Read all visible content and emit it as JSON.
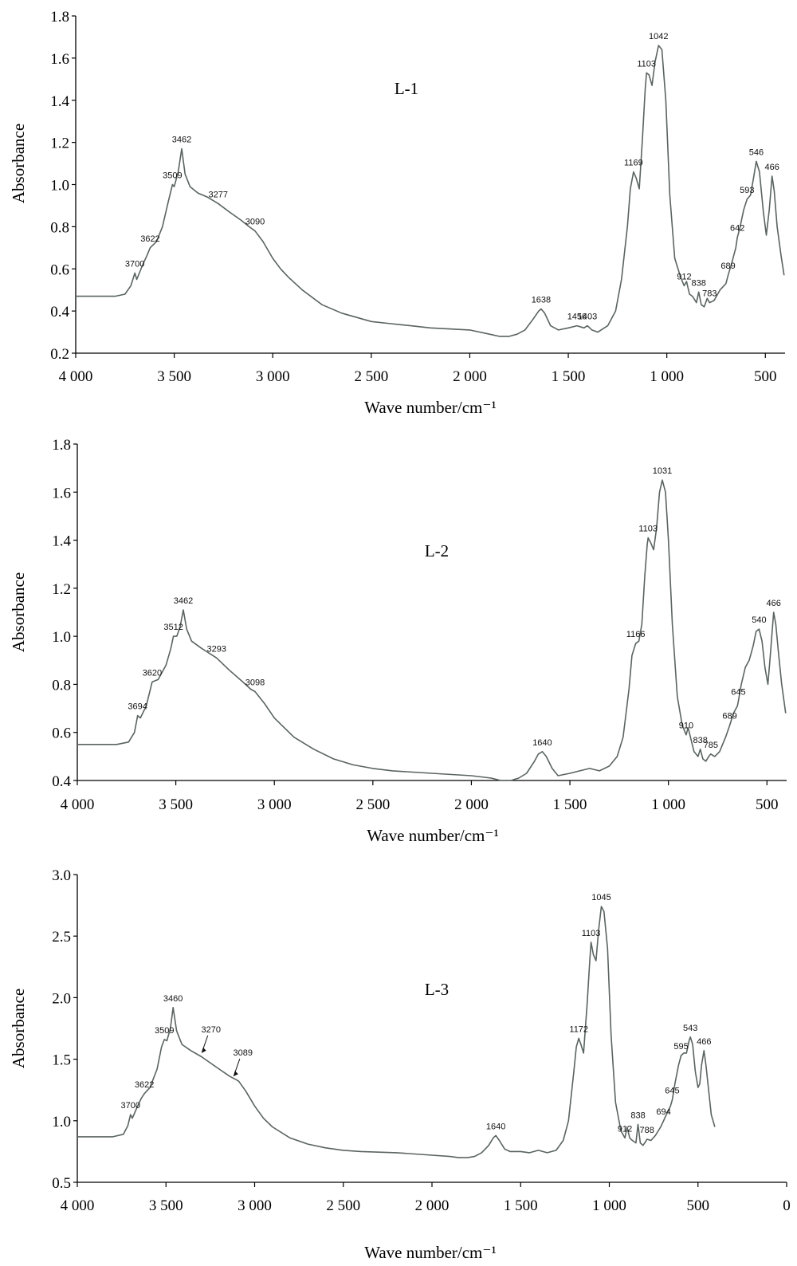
{
  "chart_data": [
    {
      "type": "line",
      "panel_label": "L-1",
      "xlabel": "Wave number/cm⁻¹",
      "ylabel": "Absorbance",
      "xlim": [
        4000,
        400
      ],
      "ylim": [
        0.2,
        1.8
      ],
      "x_ticks": [
        4000,
        3500,
        3000,
        2500,
        2000,
        1500,
        1000,
        500
      ],
      "x_tick_labels": [
        "4 000",
        "3 500",
        "3 000",
        "2 500",
        "2 000",
        "1 500",
        "1 000",
        "500"
      ],
      "y_ticks": [
        0.2,
        0.4,
        0.6,
        0.8,
        1.0,
        1.2,
        1.4,
        1.6,
        1.8
      ],
      "y_tick_labels": [
        "0.2",
        "0.4",
        "0.6",
        "0.8",
        "1.0",
        "1.2",
        "1.4",
        "1.6",
        "1.8"
      ],
      "series": [
        {
          "x": [
            4000,
            3800,
            3750,
            3720,
            3700,
            3690,
            3660,
            3640,
            3622,
            3590,
            3560,
            3530,
            3509,
            3500,
            3480,
            3462,
            3445,
            3420,
            3380,
            3330,
            3277,
            3220,
            3160,
            3120,
            3090,
            3050,
            3000,
            2960,
            2920,
            2850,
            2750,
            2650,
            2500,
            2400,
            2350,
            2300,
            2200,
            2000,
            1900,
            1850,
            1800,
            1760,
            1720,
            1680,
            1650,
            1638,
            1620,
            1590,
            1550,
            1500,
            1456,
            1420,
            1403,
            1380,
            1350,
            1300,
            1260,
            1230,
            1200,
            1185,
            1169,
            1155,
            1140,
            1125,
            1110,
            1103,
            1090,
            1075,
            1060,
            1042,
            1025,
            1005,
            985,
            960,
            930,
            912,
            900,
            885,
            870,
            850,
            838,
            825,
            810,
            795,
            783,
            760,
            730,
            700,
            689,
            670,
            650,
            642,
            630,
            610,
            593,
            575,
            560,
            546,
            530,
            510,
            495,
            480,
            466,
            455,
            440,
            420,
            405
          ],
          "y": [
            0.47,
            0.47,
            0.48,
            0.52,
            0.58,
            0.55,
            0.62,
            0.66,
            0.7,
            0.73,
            0.8,
            0.92,
            1.0,
            0.99,
            1.06,
            1.17,
            1.05,
            0.99,
            0.96,
            0.94,
            0.91,
            0.87,
            0.83,
            0.8,
            0.78,
            0.73,
            0.65,
            0.6,
            0.56,
            0.5,
            0.43,
            0.39,
            0.35,
            0.34,
            0.335,
            0.33,
            0.32,
            0.31,
            0.29,
            0.28,
            0.28,
            0.29,
            0.31,
            0.36,
            0.4,
            0.41,
            0.39,
            0.33,
            0.31,
            0.32,
            0.33,
            0.32,
            0.33,
            0.31,
            0.3,
            0.33,
            0.4,
            0.55,
            0.8,
            0.98,
            1.06,
            1.03,
            0.98,
            1.2,
            1.45,
            1.53,
            1.52,
            1.47,
            1.58,
            1.66,
            1.64,
            1.4,
            0.95,
            0.65,
            0.56,
            0.52,
            0.54,
            0.48,
            0.47,
            0.44,
            0.49,
            0.43,
            0.42,
            0.46,
            0.44,
            0.45,
            0.5,
            0.53,
            0.57,
            0.63,
            0.7,
            0.75,
            0.79,
            0.88,
            0.93,
            0.95,
            1.03,
            1.11,
            1.06,
            0.87,
            0.76,
            0.88,
            1.04,
            0.97,
            0.8,
            0.66,
            0.57
          ]
        }
      ],
      "annotations": [
        "3700",
        "3622",
        "3509",
        "3462",
        "3277",
        "3090",
        "1638",
        "1456",
        "1403",
        "1169",
        "1103",
        "1042",
        "912",
        "838",
        "783",
        "689",
        "642",
        "593",
        "546",
        "466"
      ]
    },
    {
      "type": "line",
      "panel_label": "L-2",
      "xlabel": "Wave number/cm⁻¹",
      "ylabel": "Absorbance",
      "xlim": [
        4000,
        400
      ],
      "ylim": [
        0.4,
        1.8
      ],
      "x_ticks": [
        4000,
        3500,
        3000,
        2500,
        2000,
        1500,
        1000,
        500
      ],
      "x_tick_labels": [
        "4 000",
        "3 500",
        "3 000",
        "2 500",
        "2 000",
        "1 500",
        "1 000",
        "500"
      ],
      "y_ticks": [
        0.4,
        0.6,
        0.8,
        1.0,
        1.2,
        1.4,
        1.6,
        1.8
      ],
      "y_tick_labels": [
        "0.4",
        "0.6",
        "0.8",
        "1.0",
        "1.2",
        "1.4",
        "1.6",
        "1.8"
      ],
      "series": [
        {
          "x": [
            4000,
            3800,
            3740,
            3710,
            3694,
            3680,
            3650,
            3635,
            3620,
            3590,
            3550,
            3525,
            3512,
            3495,
            3478,
            3462,
            3445,
            3420,
            3370,
            3293,
            3230,
            3160,
            3120,
            3098,
            3050,
            3000,
            2950,
            2900,
            2800,
            2700,
            2600,
            2500,
            2400,
            2200,
            2000,
            1900,
            1850,
            1800,
            1760,
            1720,
            1680,
            1660,
            1640,
            1620,
            1590,
            1560,
            1500,
            1450,
            1400,
            1350,
            1300,
            1260,
            1230,
            1200,
            1185,
            1166,
            1150,
            1135,
            1120,
            1108,
            1103,
            1090,
            1075,
            1060,
            1045,
            1031,
            1015,
            1000,
            980,
            955,
            930,
            910,
            900,
            885,
            870,
            850,
            838,
            825,
            810,
            795,
            785,
            765,
            740,
            710,
            689,
            670,
            650,
            645,
            630,
            610,
            590,
            570,
            555,
            540,
            525,
            510,
            495,
            485,
            466,
            455,
            440,
            425,
            405
          ],
          "y": [
            0.55,
            0.55,
            0.56,
            0.6,
            0.67,
            0.66,
            0.71,
            0.76,
            0.81,
            0.82,
            0.88,
            0.95,
            1.0,
            1.0,
            1.04,
            1.11,
            1.03,
            0.98,
            0.95,
            0.91,
            0.86,
            0.81,
            0.78,
            0.77,
            0.72,
            0.66,
            0.62,
            0.58,
            0.53,
            0.49,
            0.465,
            0.45,
            0.44,
            0.43,
            0.42,
            0.41,
            0.4,
            0.4,
            0.41,
            0.43,
            0.48,
            0.51,
            0.52,
            0.5,
            0.45,
            0.42,
            0.43,
            0.44,
            0.45,
            0.44,
            0.46,
            0.5,
            0.58,
            0.78,
            0.92,
            0.97,
            0.98,
            1.05,
            1.25,
            1.38,
            1.41,
            1.39,
            1.36,
            1.45,
            1.6,
            1.65,
            1.6,
            1.4,
            1.05,
            0.75,
            0.63,
            0.59,
            0.62,
            0.57,
            0.52,
            0.5,
            0.53,
            0.49,
            0.48,
            0.5,
            0.51,
            0.5,
            0.52,
            0.58,
            0.63,
            0.68,
            0.71,
            0.73,
            0.8,
            0.87,
            0.9,
            0.96,
            1.02,
            1.03,
            0.98,
            0.87,
            0.8,
            0.9,
            1.1,
            1.05,
            0.92,
            0.8,
            0.68
          ]
        }
      ],
      "annotations": [
        "3694",
        "3620",
        "3512",
        "3462",
        "3293",
        "3098",
        "1640",
        "1166",
        "1103",
        "1031",
        "910",
        "838",
        "785",
        "689",
        "645",
        "540",
        "466"
      ]
    },
    {
      "type": "line",
      "panel_label": "L-3",
      "xlabel": "Wave number/cm⁻¹",
      "ylabel": "Absorbance",
      "xlim": [
        4000,
        0
      ],
      "ylim": [
        0.5,
        3.0
      ],
      "x_ticks": [
        4000,
        3500,
        3000,
        2500,
        2000,
        1500,
        1000,
        500,
        0
      ],
      "x_tick_labels": [
        "4 000",
        "3 500",
        "3 000",
        "2 500",
        "2 000",
        "1 500",
        "1 000",
        "500",
        "0"
      ],
      "y_ticks": [
        0.5,
        1.0,
        1.5,
        2.0,
        2.5,
        3.0
      ],
      "y_tick_labels": [
        "0.5",
        "1.0",
        "1.5",
        "2.0",
        "2.5",
        "3.0"
      ],
      "series": [
        {
          "x": [
            4000,
            3800,
            3740,
            3715,
            3700,
            3690,
            3660,
            3640,
            3622,
            3590,
            3550,
            3525,
            3509,
            3495,
            3475,
            3460,
            3440,
            3410,
            3360,
            3300,
            3270,
            3200,
            3140,
            3100,
            3089,
            3050,
            3000,
            2950,
            2900,
            2800,
            2700,
            2600,
            2500,
            2400,
            2200,
            2000,
            1900,
            1850,
            1800,
            1760,
            1720,
            1680,
            1655,
            1640,
            1620,
            1590,
            1560,
            1500,
            1450,
            1400,
            1350,
            1300,
            1260,
            1230,
            1200,
            1186,
            1172,
            1160,
            1145,
            1125,
            1110,
            1103,
            1090,
            1075,
            1060,
            1045,
            1030,
            1010,
            990,
            965,
            935,
            912,
            900,
            885,
            870,
            850,
            838,
            825,
            810,
            795,
            788,
            765,
            740,
            710,
            694,
            675,
            655,
            645,
            630,
            610,
            595,
            580,
            565,
            550,
            543,
            530,
            515,
            500,
            490,
            480,
            466,
            455,
            440,
            425,
            405
          ],
          "y": [
            0.87,
            0.87,
            0.89,
            0.96,
            1.05,
            1.02,
            1.12,
            1.18,
            1.22,
            1.27,
            1.42,
            1.6,
            1.66,
            1.65,
            1.75,
            1.92,
            1.73,
            1.62,
            1.57,
            1.52,
            1.49,
            1.42,
            1.36,
            1.33,
            1.32,
            1.24,
            1.12,
            1.02,
            0.95,
            0.86,
            0.81,
            0.78,
            0.76,
            0.75,
            0.74,
            0.72,
            0.71,
            0.7,
            0.7,
            0.71,
            0.74,
            0.8,
            0.86,
            0.88,
            0.84,
            0.77,
            0.75,
            0.75,
            0.74,
            0.76,
            0.74,
            0.76,
            0.84,
            1.0,
            1.4,
            1.6,
            1.67,
            1.62,
            1.55,
            1.95,
            2.3,
            2.45,
            2.35,
            2.3,
            2.55,
            2.74,
            2.7,
            2.4,
            1.7,
            1.15,
            0.92,
            0.86,
            0.95,
            0.86,
            0.84,
            0.82,
            0.97,
            0.82,
            0.8,
            0.83,
            0.85,
            0.84,
            0.88,
            0.95,
            1.0,
            1.06,
            1.12,
            1.17,
            1.3,
            1.45,
            1.53,
            1.55,
            1.55,
            1.65,
            1.68,
            1.62,
            1.4,
            1.27,
            1.3,
            1.45,
            1.57,
            1.45,
            1.25,
            1.05,
            0.95
          ]
        }
      ],
      "annotations": [
        "3700",
        "3622",
        "3509",
        "3460",
        "3270",
        "3089",
        "1640",
        "1172",
        "1103",
        "1045",
        "912",
        "838",
        "788",
        "694",
        "645",
        "595",
        "543",
        "466"
      ]
    }
  ]
}
